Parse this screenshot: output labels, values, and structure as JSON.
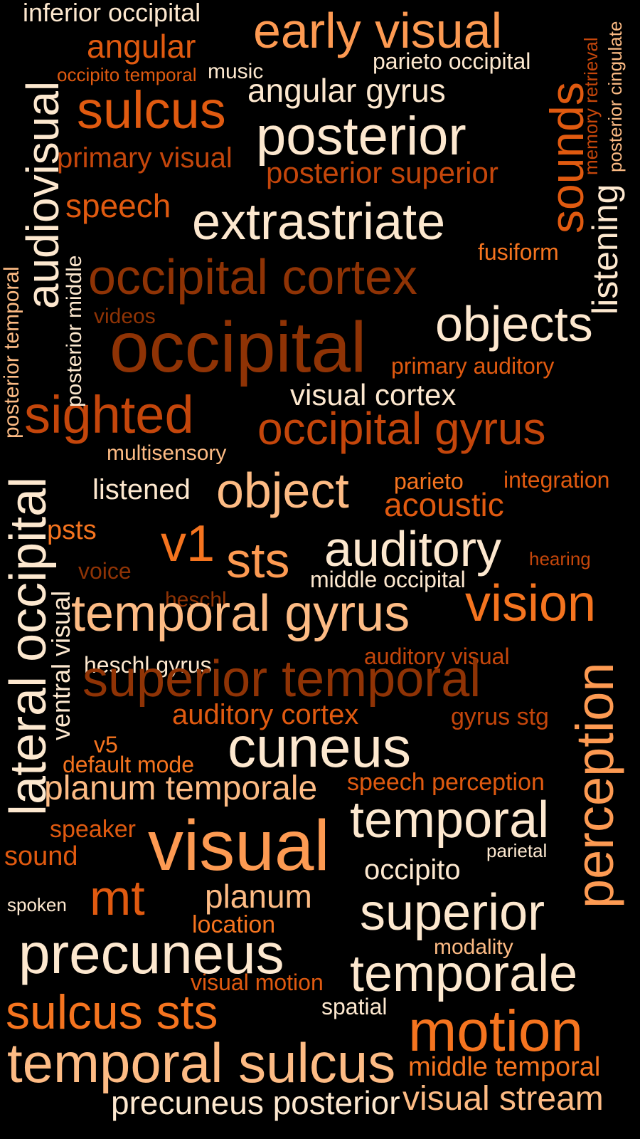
{
  "words": {
    "inferior_occipital": "inferior occipital",
    "angular": "angular",
    "early_visual": "early visual",
    "parieto_occipital": "parieto occipital",
    "occipito_temporal": "occipito temporal",
    "music": "music",
    "angular_gyrus": "angular gyrus",
    "sulcus": "sulcus",
    "posterior": "posterior",
    "primary_visual": "primary visual",
    "posterior_superior": "posterior superior",
    "speech": "speech",
    "extrastriate": "extrastriate",
    "fusiform": "fusiform",
    "occipital_cortex": "occipital cortex",
    "videos": "videos",
    "occipital": "occipital",
    "objects": "objects",
    "primary_auditory": "primary auditory",
    "visual_cortex": "visual cortex",
    "sighted": "sighted",
    "occipital_gyrus": "occipital gyrus",
    "multisensory": "multisensory",
    "listened": "listened",
    "object": "object",
    "parieto": "parieto",
    "integration": "integration",
    "acoustic": "acoustic",
    "psts": "psts",
    "v1": "v1",
    "sts": "sts",
    "auditory": "auditory",
    "hearing": "hearing",
    "voice": "voice",
    "middle_occipital": "middle occipital",
    "heschl": "heschl",
    "temporal_gyrus": "temporal gyrus",
    "vision": "vision",
    "heschl_gyrus": "heschl gyrus",
    "auditory_visual": "auditory visual",
    "superior_temporal": "superior temporal",
    "auditory_cortex": "auditory cortex",
    "gyrus_stg": "gyrus stg",
    "v5": "v5",
    "cuneus": "cuneus",
    "default_mode": "default mode",
    "planum_temporale": "planum temporale",
    "speech_perception": "speech perception",
    "temporal": "temporal",
    "speaker": "speaker",
    "visual": "visual",
    "sound": "sound",
    "parietal": "parietal",
    "occipito": "occipito",
    "planum": "planum",
    "spoken": "spoken",
    "mt": "mt",
    "superior": "superior",
    "location": "location",
    "precuneus": "precuneus",
    "modality": "modality",
    "temporale": "temporale",
    "visual_motion": "visual motion",
    "sulcus_sts": "sulcus sts",
    "spatial": "spatial",
    "motion": "motion",
    "temporal_sulcus": "temporal sulcus",
    "middle_temporal": "middle temporal",
    "precuneus_posterior": "precuneus posterior",
    "visual_stream": "visual stream",
    "audiovisual": "audiovisual",
    "posterior_temporal": "posterior temporal",
    "posterior_middle": "posterior middle",
    "lateral_occipital": "lateral occipital",
    "ventral_visual": "ventral visual",
    "sounds": "sounds",
    "memory_retrieval": "memory retrieval",
    "posterior_cingulate": "posterior cingulate",
    "listening": "listening",
    "perception": "perception"
  },
  "palette": {
    "background": "#000000",
    "cream": "#fde8cf",
    "peach": "#fdbb84",
    "light_orange": "#fd9a52",
    "orange": "#f5741f",
    "dark_orange": "#e05a10",
    "rust": "#c4460b",
    "brown": "#8f3305"
  }
}
